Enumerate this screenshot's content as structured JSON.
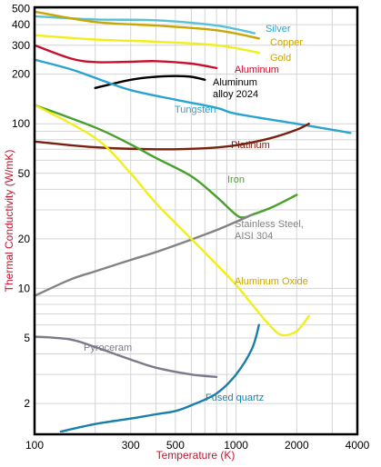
{
  "chart_data": {
    "type": "line",
    "title": "",
    "xlabel": "Temperature (K)",
    "ylabel": "Thermal Conductivity (W/mK)",
    "x_scale": "log",
    "y_scale": "log",
    "xlim": [
      100,
      4000
    ],
    "ylim": [
      1.3,
      510
    ],
    "grid": true,
    "x_ticks": [
      {
        "value": 100,
        "label": "100"
      },
      {
        "value": 300,
        "label": "300"
      },
      {
        "value": 500,
        "label": "500"
      },
      {
        "value": 1000,
        "label": "1000"
      },
      {
        "value": 2000,
        "label": "2000"
      },
      {
        "value": 4000,
        "label": "4000"
      }
    ],
    "y_ticks": [
      {
        "value": 2,
        "label": "2"
      },
      {
        "value": 5,
        "label": "5"
      },
      {
        "value": 10,
        "label": "10"
      },
      {
        "value": 20,
        "label": "20"
      },
      {
        "value": 50,
        "label": "50"
      },
      {
        "value": 100,
        "label": "100"
      },
      {
        "value": 200,
        "label": "200"
      },
      {
        "value": 300,
        "label": "300"
      },
      {
        "value": 400,
        "label": "400"
      },
      {
        "value": 500,
        "label": "500"
      }
    ],
    "series": [
      {
        "name": "Silver",
        "color": "#5bc0d6",
        "label_lines": [
          "Silver"
        ],
        "x": [
          100,
          200,
          400,
          800,
          1235
        ],
        "y": [
          450,
          430,
          425,
          395,
          355
        ]
      },
      {
        "name": "Copper",
        "color": "#c9a600",
        "label_lines": [
          "Copper"
        ],
        "x": [
          100,
          200,
          400,
          800,
          1300
        ],
        "y": [
          480,
          415,
          395,
          370,
          330
        ]
      },
      {
        "name": "Gold",
        "color": "#f2ee1e",
        "label_lines": [
          "Gold"
        ],
        "x": [
          100,
          200,
          400,
          800,
          1300
        ],
        "y": [
          345,
          325,
          315,
          300,
          270
        ]
      },
      {
        "name": "Aluminum",
        "color": "#c8102e",
        "label_lines": [
          "Aluminum"
        ],
        "x": [
          100,
          150,
          200,
          300,
          400,
          600,
          800
        ],
        "y": [
          300,
          250,
          237,
          238,
          240,
          232,
          218
        ]
      },
      {
        "name": "Aluminum alloy 2024",
        "color": "#000000",
        "label_lines": [
          "Aluminum",
          "alloy 2024"
        ],
        "x": [
          200,
          300,
          400,
          500,
          600,
          700
        ],
        "y": [
          165,
          185,
          193,
          195,
          193,
          185
        ]
      },
      {
        "name": "Tungsten",
        "color": "#2ba3cf",
        "label_lines": [
          "Tungsten"
        ],
        "x": [
          100,
          150,
          200,
          300,
          500,
          800,
          1000,
          2000,
          3000,
          3695
        ],
        "y": [
          245,
          215,
          190,
          160,
          140,
          125,
          115,
          100,
          92,
          88
        ]
      },
      {
        "name": "Platinum",
        "color": "#7a2010",
        "label_lines": [
          "Platinum"
        ],
        "x": [
          100,
          200,
          400,
          700,
          1000,
          1500,
          2000,
          2300
        ],
        "y": [
          78,
          72,
          70,
          71,
          74,
          82,
          92,
          100
        ]
      },
      {
        "name": "Iron",
        "color": "#4aa02c",
        "label_lines": [
          "Iron"
        ],
        "x": [
          100,
          200,
          300,
          400,
          600,
          800,
          1000,
          1100,
          1200,
          1500,
          2000
        ],
        "y": [
          130,
          95,
          75,
          62,
          48,
          36,
          28,
          27,
          28,
          31,
          37
        ]
      },
      {
        "name": "Stainless Steel, AISI 304",
        "color": "#838383",
        "label_lines": [
          "Stainless Steel,",
          "AISI 304"
        ],
        "x": [
          100,
          150,
          200,
          300,
          400,
          600,
          800,
          1000,
          1200
        ],
        "y": [
          9,
          11.3,
          12.7,
          14.9,
          16.6,
          19.8,
          22.6,
          25.4,
          28
        ]
      },
      {
        "name": "Aluminum Oxide",
        "color": "#f2ee1e",
        "label_lines": [
          "Aluminum Oxide"
        ],
        "x": [
          100,
          200,
          300,
          400,
          600,
          800,
          1000,
          1200,
          1500,
          1700,
          2000,
          2300
        ],
        "y": [
          130,
          82,
          50,
          33,
          20,
          14,
          10.5,
          8,
          5.8,
          5.2,
          5.5,
          6.8
        ]
      },
      {
        "name": "Pyroceram",
        "color": "#7c7a8a",
        "label_lines": [
          "Pyroceram"
        ],
        "x": [
          100,
          150,
          200,
          300,
          400,
          600,
          800
        ],
        "y": [
          5.1,
          4.9,
          4.4,
          3.7,
          3.3,
          3.0,
          2.9
        ]
      },
      {
        "name": "Fused quartz",
        "color": "#1a7fa8",
        "label_lines": [
          "Fused quartz"
        ],
        "x": [
          135,
          200,
          300,
          400,
          500,
          600,
          800,
          1000,
          1200,
          1300
        ],
        "y": [
          1.35,
          1.5,
          1.62,
          1.72,
          1.8,
          1.95,
          2.3,
          3.0,
          4.3,
          6.0
        ]
      }
    ]
  }
}
